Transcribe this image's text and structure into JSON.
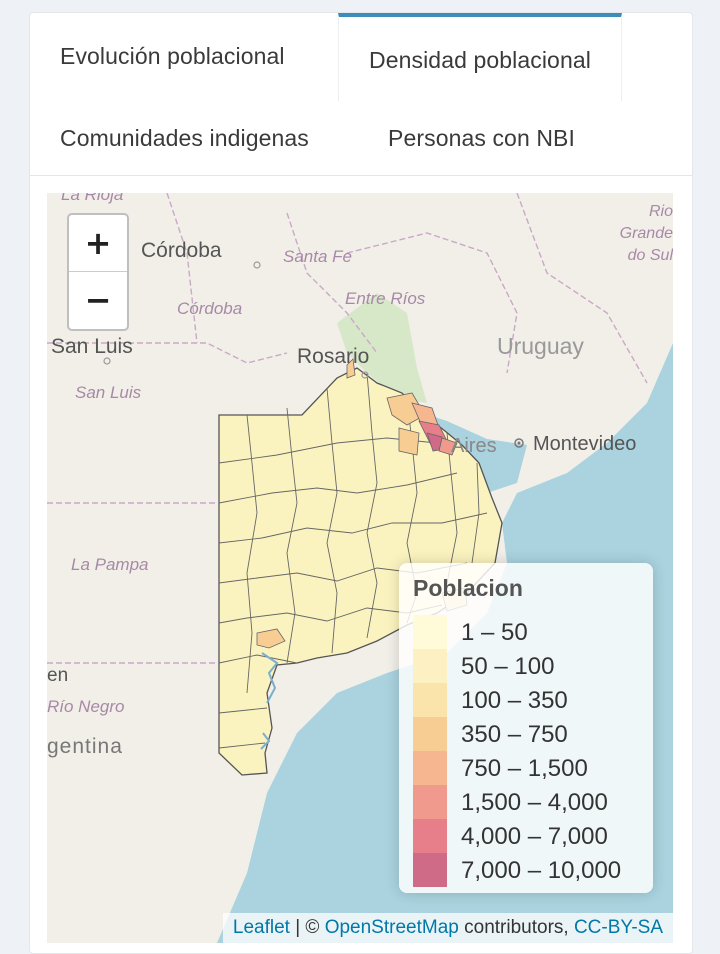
{
  "tabs": [
    {
      "label": "Evolución poblacional",
      "active": false
    },
    {
      "label": "Densidad poblacional",
      "active": true
    },
    {
      "label": "Comunidades indigenas",
      "active": false
    },
    {
      "label": "Personas con NBI",
      "active": false
    }
  ],
  "map": {
    "zoom_in": "+",
    "zoom_out": "−",
    "place_labels": {
      "rioja": "La Rioja",
      "cordoba_city": "Córdoba",
      "cordoba_prov": "Córdoba",
      "santa_fe": "Santa Fe",
      "entre_rios": "Entre Ríos",
      "san_luis_city": "San Luis",
      "san_luis_prov": "San Luis",
      "rosario": "Rosario",
      "uruguay": "Uruguay",
      "rio_grande": "Rio Grande do Sul",
      "montevideo": "Montevideo",
      "buenos_aires": "Aires",
      "la_pampa": "La Pampa",
      "neuquen": "en",
      "rio_negro": "Río Negro",
      "argentina": "gentina"
    },
    "legend": {
      "title": "Poblacion",
      "items": [
        {
          "label": "1 – 50",
          "color": "#fffbd8"
        },
        {
          "label": "50 – 100",
          "color": "#fdf0c2"
        },
        {
          "label": "100 – 350",
          "color": "#fbe3ac"
        },
        {
          "label": "350 – 750",
          "color": "#f8cd94"
        },
        {
          "label": "750 – 1,500",
          "color": "#f5b690"
        },
        {
          "label": "1,500 – 4,000",
          "color": "#f09a8e"
        },
        {
          "label": "4,000 – 7,000",
          "color": "#e67f8a"
        },
        {
          "label": "7,000 – 10,000",
          "color": "#cf6a87"
        }
      ]
    },
    "attribution": {
      "leaflet": "Leaflet",
      "sep": " | © ",
      "osm": "OpenStreetMap",
      "contributors": " contributors, ",
      "license": "CC-BY-SA"
    }
  }
}
